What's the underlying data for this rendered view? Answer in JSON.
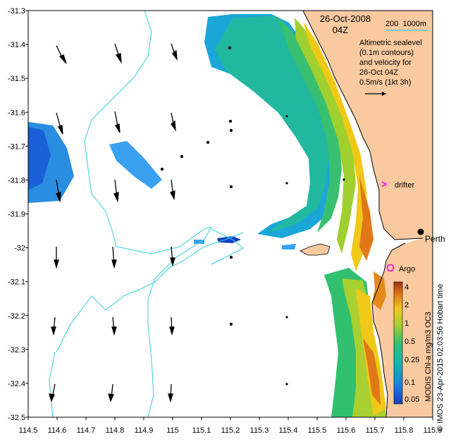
{
  "header": {
    "date": "26-Oct-2008",
    "time": "04Z",
    "scale_label": "200  1000m",
    "info_lines": [
      "Altimetric sealevel",
      "(0.1m contours)",
      "and velocity for",
      "26-Oct 04Z",
      "0.5m/s (1kt 3h)"
    ]
  },
  "labels": {
    "drifter": "drifter",
    "perth": "Perth",
    "argo": "Argo"
  },
  "side_text": {
    "colorbar_title": "MODIS Chl-a mg/m3 OC3",
    "credit": "© IMOS 23-Apr-2015 02:03:56 Hobart time"
  },
  "colorbar": {
    "ticks": [
      "4",
      "2",
      "1",
      "0.5",
      "0.25",
      "0.1",
      "0.05"
    ]
  },
  "axes": {
    "x_ticks": [
      "114.5",
      "114.6",
      "114.7",
      "114.8",
      "114.9",
      "115",
      "115.1",
      "115.2",
      "115.3",
      "115.4",
      "115.5",
      "115.6",
      "115.7",
      "115.8",
      "115.9"
    ],
    "y_ticks": [
      "-31.3",
      "-31.4",
      "-31.5",
      "-31.6",
      "-31.7",
      "-31.8",
      "-31.9",
      "-32",
      "-32.1",
      "-32.2",
      "-32.3",
      "-32.4",
      "-32.5"
    ],
    "lon_range": [
      114.5,
      115.9
    ],
    "lat_range": [
      -32.5,
      -31.3
    ]
  },
  "colors": {
    "land": "#f9c9a0",
    "contour": "#33ccdd",
    "drifter_marker": "#ff00ff",
    "argo_marker": "#ee22cc"
  }
}
